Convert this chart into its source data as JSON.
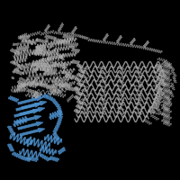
{
  "background_color": "#000000",
  "main_protein_color": "#aaaaaa",
  "domain_color": "#4d90cc",
  "fig_width": 2.0,
  "fig_height": 2.0,
  "dpi": 100
}
